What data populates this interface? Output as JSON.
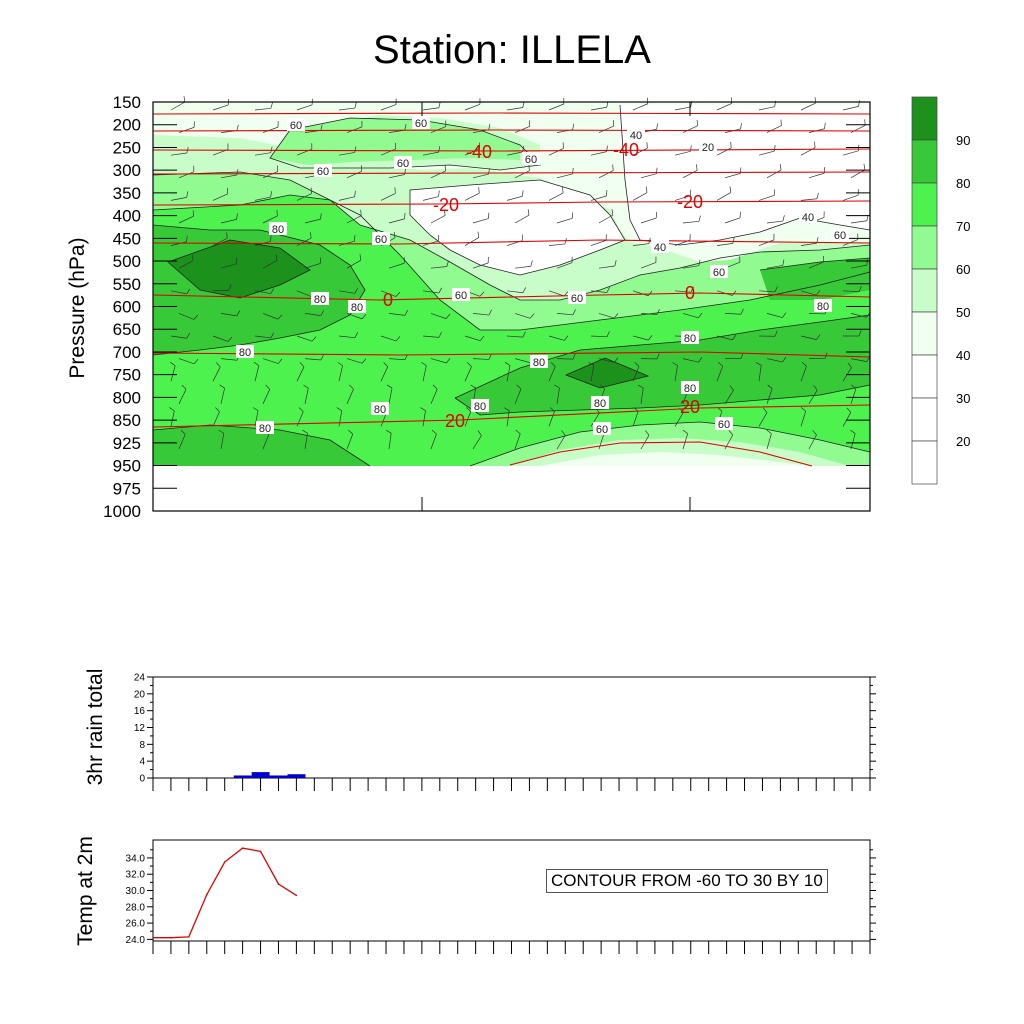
{
  "title": "Station: ILLELA",
  "chart_data": [
    {
      "type": "heatmap",
      "panel": "sounding",
      "ylabel": "Pressure (hPa)",
      "y_ticks": [
        150,
        200,
        250,
        300,
        350,
        400,
        450,
        500,
        550,
        600,
        650,
        700,
        750,
        800,
        850,
        925,
        950,
        975,
        1000
      ],
      "legend_levels": [
        "20",
        "30",
        "40",
        "50",
        "60",
        "70",
        "80",
        "90"
      ],
      "legend_colors": [
        "#ffffff",
        "#ffffff",
        "#ffffff",
        "#f0fff0",
        "#c8fcc8",
        "#91fa91",
        "#4ef24e",
        "#37c937",
        "#1c911c"
      ],
      "humidity_labels": [
        "60",
        "60",
        "60",
        "60",
        "60",
        "60",
        "60",
        "60",
        "60",
        "60",
        "60",
        "60",
        "40",
        "40",
        "40",
        "80",
        "80",
        "80",
        "80",
        "80",
        "80",
        "80",
        "80",
        "80",
        "80",
        "80",
        "80",
        "20"
      ],
      "temperature_labels": [
        "-40",
        "-40",
        "-20",
        "-20",
        "0",
        "0",
        "20",
        "20"
      ],
      "temp_line_color": "#e00000"
    },
    {
      "type": "bar",
      "panel": "rain",
      "ylabel": "3hr rain total",
      "y_ticks": [
        "0",
        "4",
        "8",
        "12",
        "16",
        "20",
        "24"
      ],
      "ylim": [
        0,
        24
      ],
      "x": [
        5,
        6,
        7,
        8
      ],
      "values": [
        0.6,
        1.4,
        0.6,
        0.9
      ],
      "n_steps": 40,
      "bar_color": "#0000cc"
    },
    {
      "type": "line",
      "panel": "temp2m",
      "ylabel": "Temp at 2m",
      "y_ticks": [
        "24.0",
        "26.0",
        "28.0",
        "30.0",
        "32.0",
        "34.0"
      ],
      "ylim": [
        23.8,
        36.2
      ],
      "x": [
        0,
        1,
        2,
        3,
        4,
        5,
        6,
        7,
        8
      ],
      "values": [
        24.2,
        24.2,
        24.3,
        29.5,
        33.5,
        35.2,
        34.8,
        30.8,
        29.4
      ],
      "n_steps": 40,
      "line_color": "#e00000",
      "note": "CONTOUR FROM -60 TO 30 BY 10"
    }
  ]
}
